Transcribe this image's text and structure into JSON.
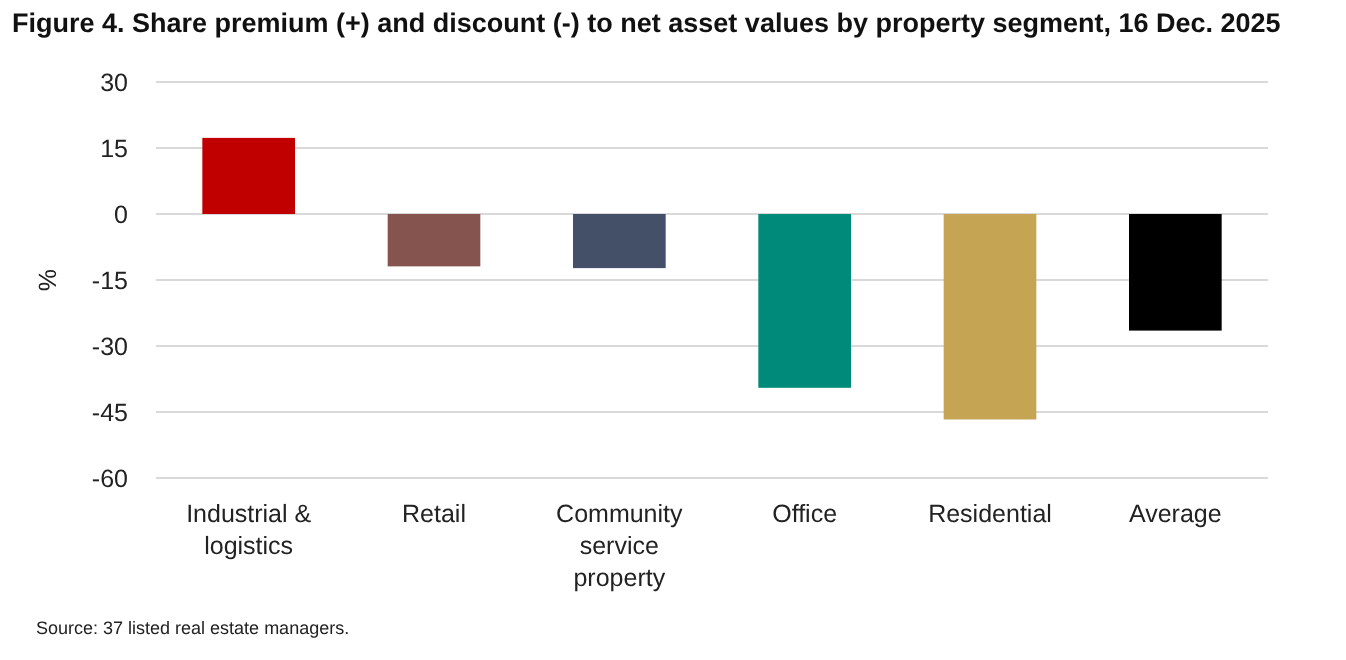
{
  "chart_data": {
    "type": "bar",
    "title": "Figure 4. Share premium (+) and discount (-) to net asset values by property segment, 16 Dec. 2025",
    "ylabel": "%",
    "categories": [
      "Industrial & logistics",
      "Retail",
      "Community service property",
      "Office",
      "Residential",
      "Average"
    ],
    "values": [
      17.3,
      -11.9,
      -12.3,
      -39.5,
      -46.7,
      -26.5
    ],
    "colors": [
      "#c00000",
      "#85544e",
      "#435068",
      "#008a7a",
      "#c5a453",
      "#000000"
    ],
    "ylim": [
      -60,
      30
    ],
    "yticks": [
      -60,
      -45,
      -30,
      -15,
      0,
      15,
      30
    ],
    "grid": "y",
    "annotations": [
      "Source: 37 listed real estate managers."
    ]
  }
}
